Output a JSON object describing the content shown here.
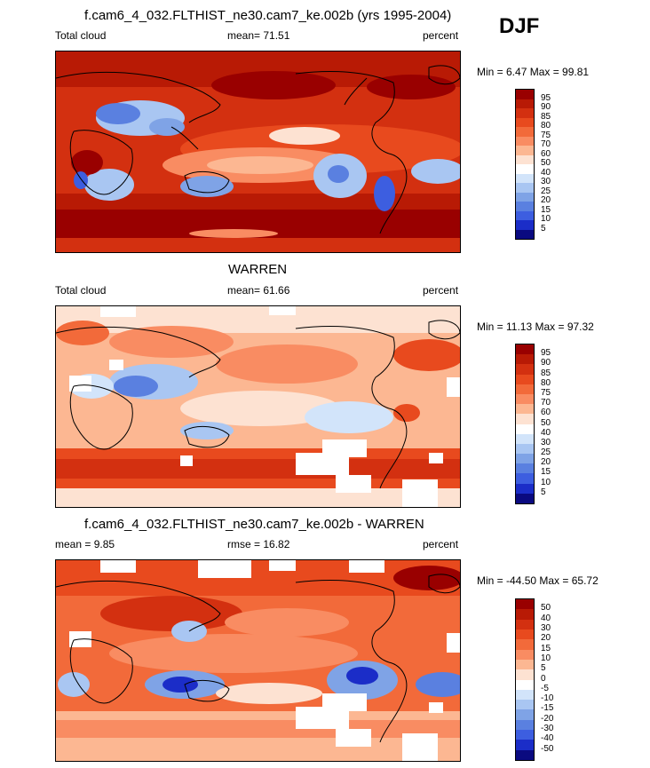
{
  "season": "DJF",
  "panels": [
    {
      "title": "f.cam6_4_032.FLTHIST_ne30.cam7_ke.002b (yrs 1995-2004)",
      "left_label": "Total cloud",
      "center_label": "mean=  71.51",
      "right_label": "percent",
      "minmax": "Min =   6.47 Max =  99.81",
      "levels": [
        "95",
        "90",
        "85",
        "80",
        "75",
        "70",
        "60",
        "50",
        "40",
        "30",
        "25",
        "20",
        "15",
        "10",
        "5"
      ],
      "colors": [
        "#990000",
        "#b81a05",
        "#d33010",
        "#e84a1e",
        "#f26a3a",
        "#f98c62",
        "#fcb792",
        "#fde2d2",
        "#ffffff",
        "#d2e4fa",
        "#a9c6f2",
        "#7fa3e6",
        "#5a80e0",
        "#3d5ee0",
        "#1b2dc8",
        "#0a0a80"
      ]
    },
    {
      "title": "WARREN",
      "left_label": "Total cloud",
      "center_label": "mean=  61.66",
      "right_label": "percent",
      "minmax": "Min =  11.13 Max =  97.32",
      "levels": [
        "95",
        "90",
        "85",
        "80",
        "75",
        "70",
        "60",
        "50",
        "40",
        "30",
        "25",
        "20",
        "15",
        "10",
        "5"
      ],
      "colors": [
        "#990000",
        "#b81a05",
        "#d33010",
        "#e84a1e",
        "#f26a3a",
        "#f98c62",
        "#fcb792",
        "#fde2d2",
        "#ffffff",
        "#d2e4fa",
        "#a9c6f2",
        "#7fa3e6",
        "#5a80e0",
        "#3d5ee0",
        "#1b2dc8",
        "#0a0a80"
      ]
    },
    {
      "title": "f.cam6_4_032.FLTHIST_ne30.cam7_ke.002b - WARREN",
      "left_label": "mean =   9.85",
      "center_label": "rmse =  16.82",
      "right_label": "percent",
      "minmax": "Min = -44.50 Max =  65.72",
      "levels": [
        "50",
        "40",
        "30",
        "20",
        "15",
        "10",
        "5",
        "0",
        "-5",
        "-10",
        "-15",
        "-20",
        "-30",
        "-40",
        "-50"
      ],
      "colors": [
        "#990000",
        "#b81a05",
        "#d33010",
        "#e84a1e",
        "#f26a3a",
        "#f98c62",
        "#fcb792",
        "#fde2d2",
        "#ffffff",
        "#d2e4fa",
        "#a9c6f2",
        "#7fa3e6",
        "#5a80e0",
        "#3d5ee0",
        "#1b2dc8",
        "#0a0a80"
      ]
    }
  ]
}
